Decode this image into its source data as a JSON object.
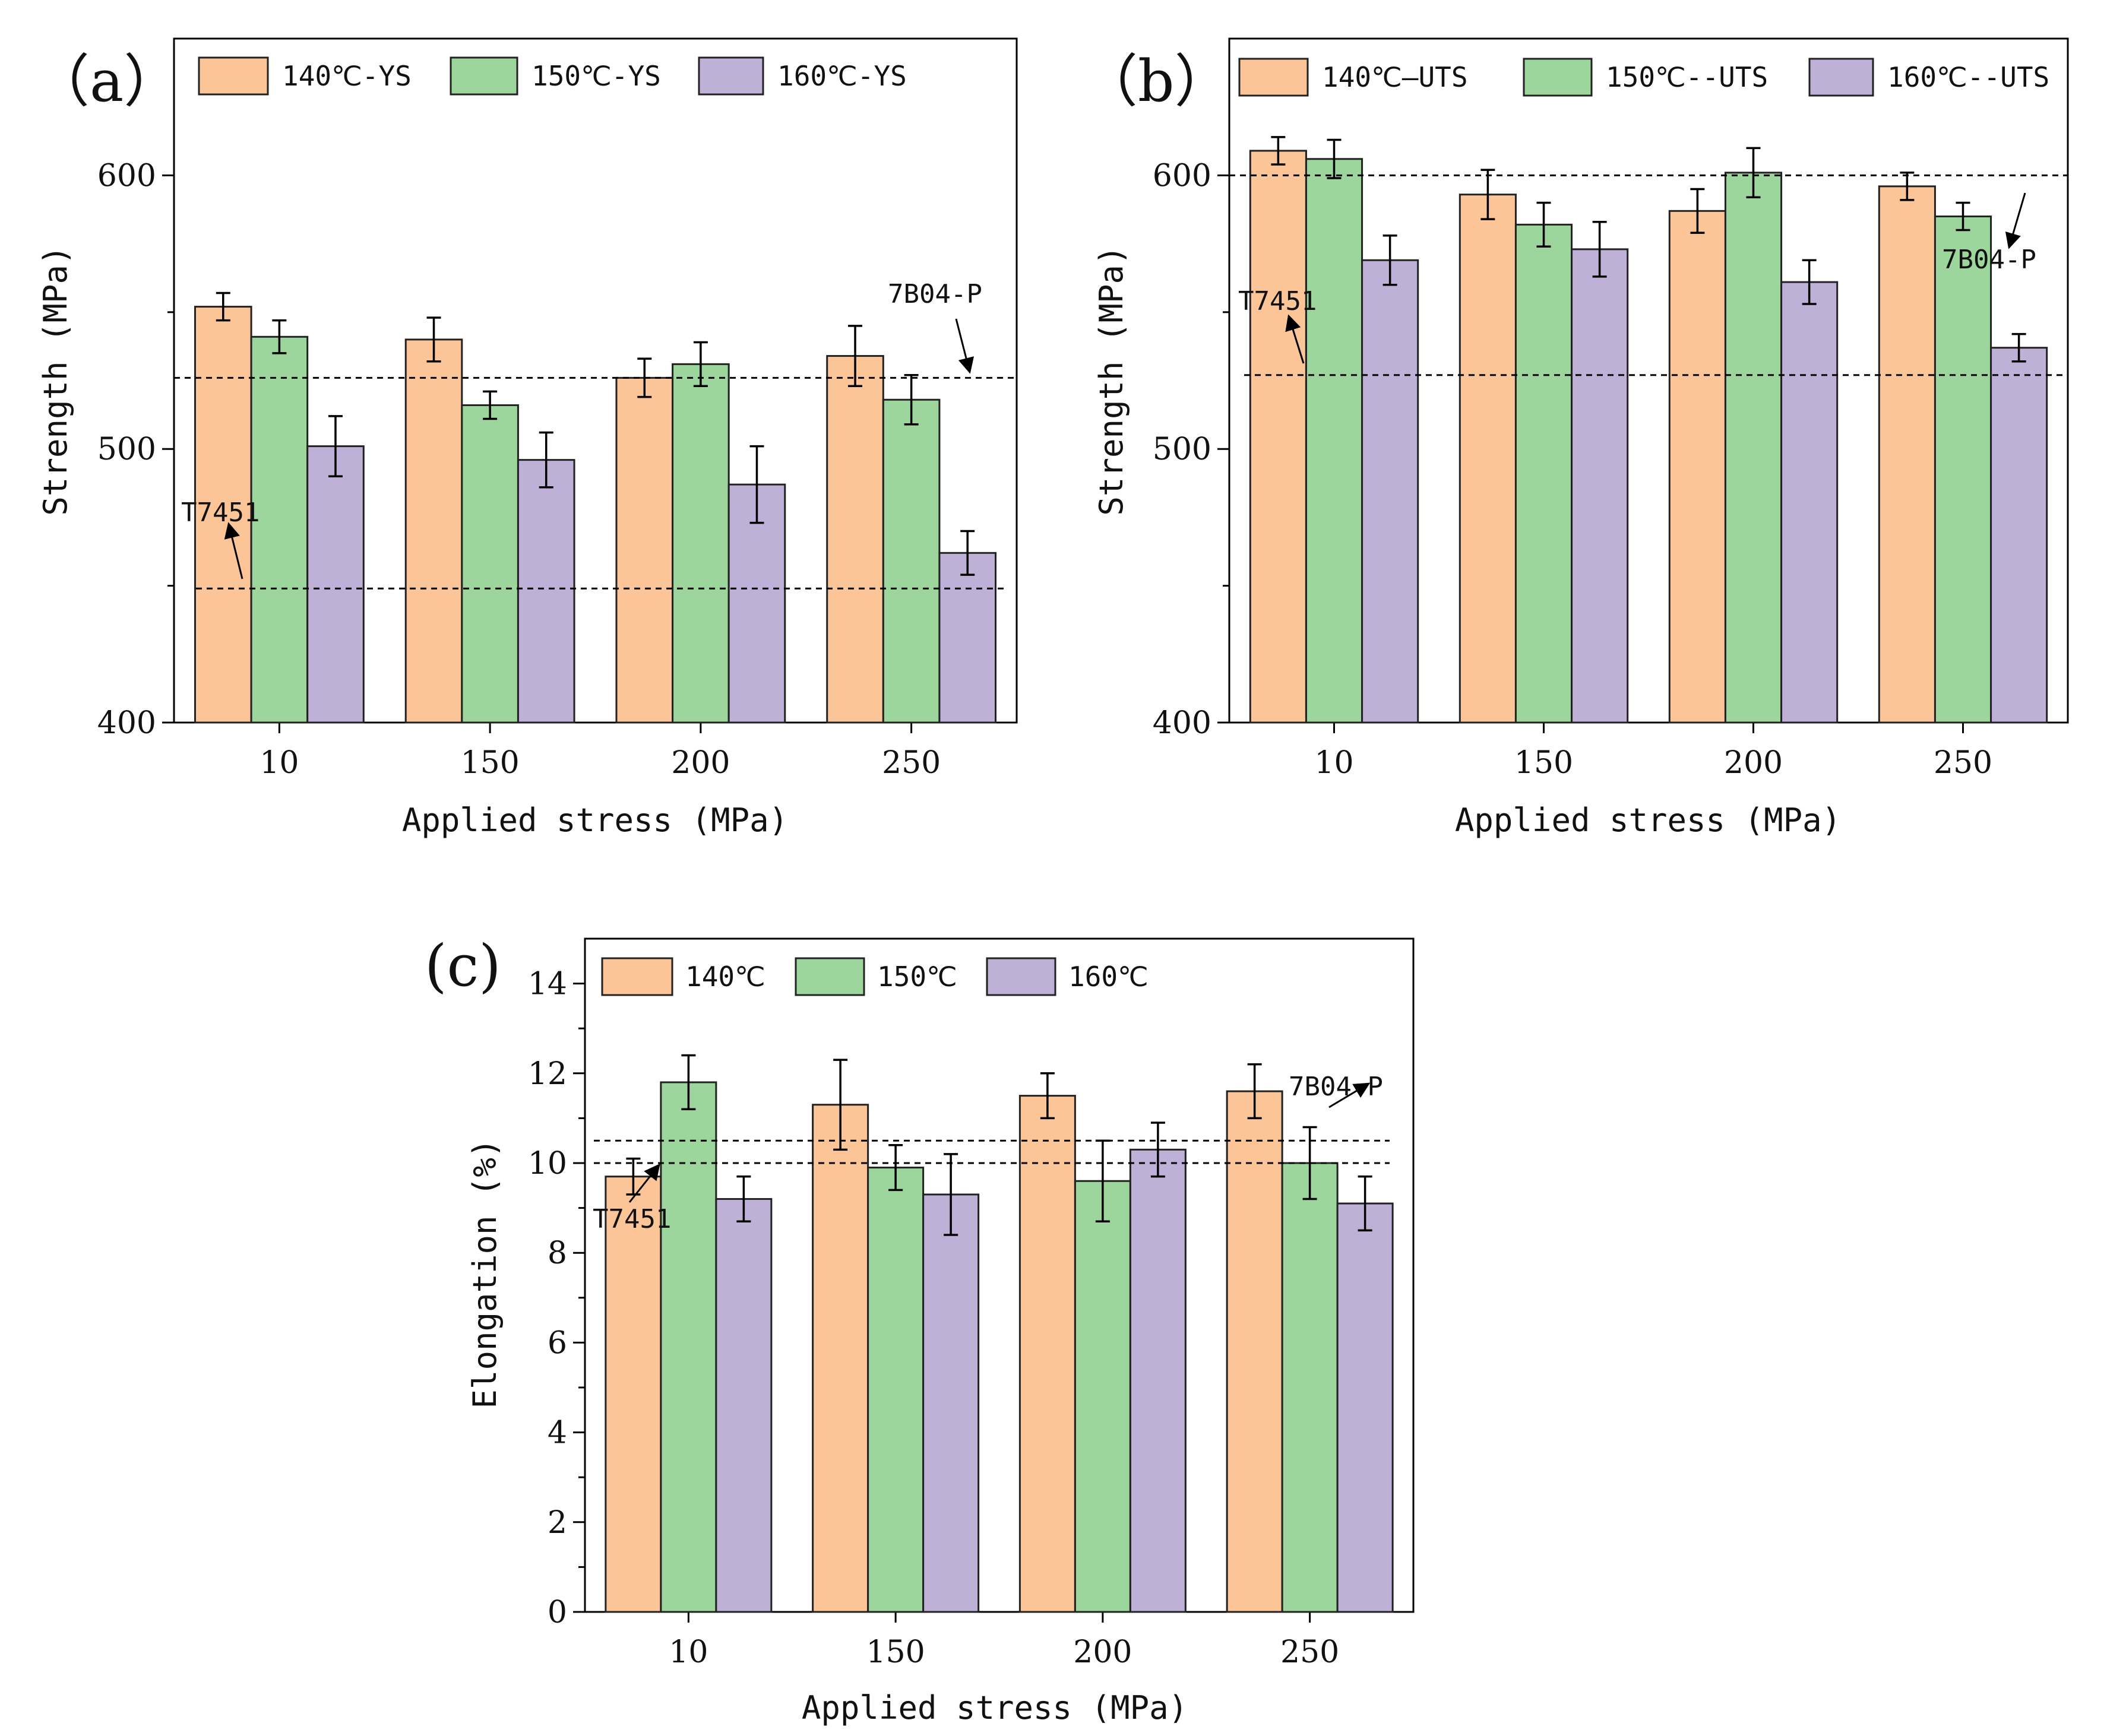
{
  "chart_data": [
    {
      "id": "a",
      "type": "bar",
      "panel_label": "（a）",
      "categories": [
        "10",
        "150",
        "200",
        "250"
      ],
      "series": [
        {
          "name": "140℃-YS",
          "color": "#FBC598",
          "values": [
            552,
            540,
            526,
            534
          ],
          "errors": [
            5,
            8,
            7,
            11
          ]
        },
        {
          "name": "150℃-YS",
          "color": "#9CD69C",
          "values": [
            541,
            516,
            531,
            518
          ],
          "errors": [
            6,
            5,
            8,
            9
          ]
        },
        {
          "name": "160℃-YS",
          "color": "#BEB0D6",
          "values": [
            501,
            496,
            487,
            462
          ],
          "errors": [
            11,
            10,
            14,
            8
          ]
        }
      ],
      "xlabel": "Applied stress (MPa)",
      "ylabel": "Strength (MPa)",
      "ylim": [
        400,
        650
      ],
      "yticks": [
        400,
        500,
        600
      ],
      "minor_yticks": [
        450,
        550
      ],
      "reference_lines": [
        {
          "label": "7B04-P",
          "value": 526
        },
        {
          "label": "T7451",
          "value": 449
        }
      ]
    },
    {
      "id": "b",
      "type": "bar",
      "panel_label": "（b）",
      "categories": [
        "10",
        "150",
        "200",
        "250"
      ],
      "series": [
        {
          "name": "140℃—UTS",
          "color": "#FBC598",
          "values": [
            609,
            593,
            587,
            596
          ],
          "errors": [
            5,
            9,
            8,
            5
          ]
        },
        {
          "name": "150℃--UTS",
          "color": "#9CD69C",
          "values": [
            606,
            582,
            601,
            585
          ],
          "errors": [
            7,
            8,
            9,
            5
          ]
        },
        {
          "name": "160℃--UTS",
          "color": "#BEB0D6",
          "values": [
            569,
            573,
            561,
            537
          ],
          "errors": [
            9,
            10,
            8,
            5
          ]
        }
      ],
      "xlabel": "Applied stress (MPa)",
      "ylabel": "Strength (MPa)",
      "ylim": [
        400,
        650
      ],
      "yticks": [
        400,
        500,
        600
      ],
      "minor_yticks": [
        450,
        550
      ],
      "reference_lines": [
        {
          "label": "7B04-P",
          "value": 600
        },
        {
          "label": "T7451",
          "value": 527
        }
      ]
    },
    {
      "id": "c",
      "type": "bar",
      "panel_label": "(c)",
      "categories": [
        "10",
        "150",
        "200",
        "250"
      ],
      "series": [
        {
          "name": "140℃",
          "color": "#FBC598",
          "values": [
            9.7,
            11.3,
            11.5,
            11.6
          ],
          "errors": [
            0.4,
            1.0,
            0.5,
            0.6
          ]
        },
        {
          "name": "150℃",
          "color": "#9CD69C",
          "values": [
            11.8,
            9.9,
            9.6,
            10.0
          ],
          "errors": [
            0.6,
            0.5,
            0.9,
            0.8
          ]
        },
        {
          "name": "160℃",
          "color": "#BEB0D6",
          "values": [
            9.2,
            9.3,
            10.3,
            9.1
          ],
          "errors": [
            0.5,
            0.9,
            0.6,
            0.6
          ]
        }
      ],
      "xlabel": "Applied stress (MPa)",
      "ylabel": "Elongation (%)",
      "ylim": [
        0,
        15
      ],
      "yticks": [
        0,
        2,
        4,
        6,
        8,
        10,
        12,
        14
      ],
      "minor_yticks": [
        1,
        3,
        5,
        7,
        9,
        11,
        13
      ],
      "reference_lines": [
        {
          "label": "7B04-P",
          "value": 10.5
        },
        {
          "label": "T7451",
          "value": 10.0
        }
      ]
    }
  ]
}
